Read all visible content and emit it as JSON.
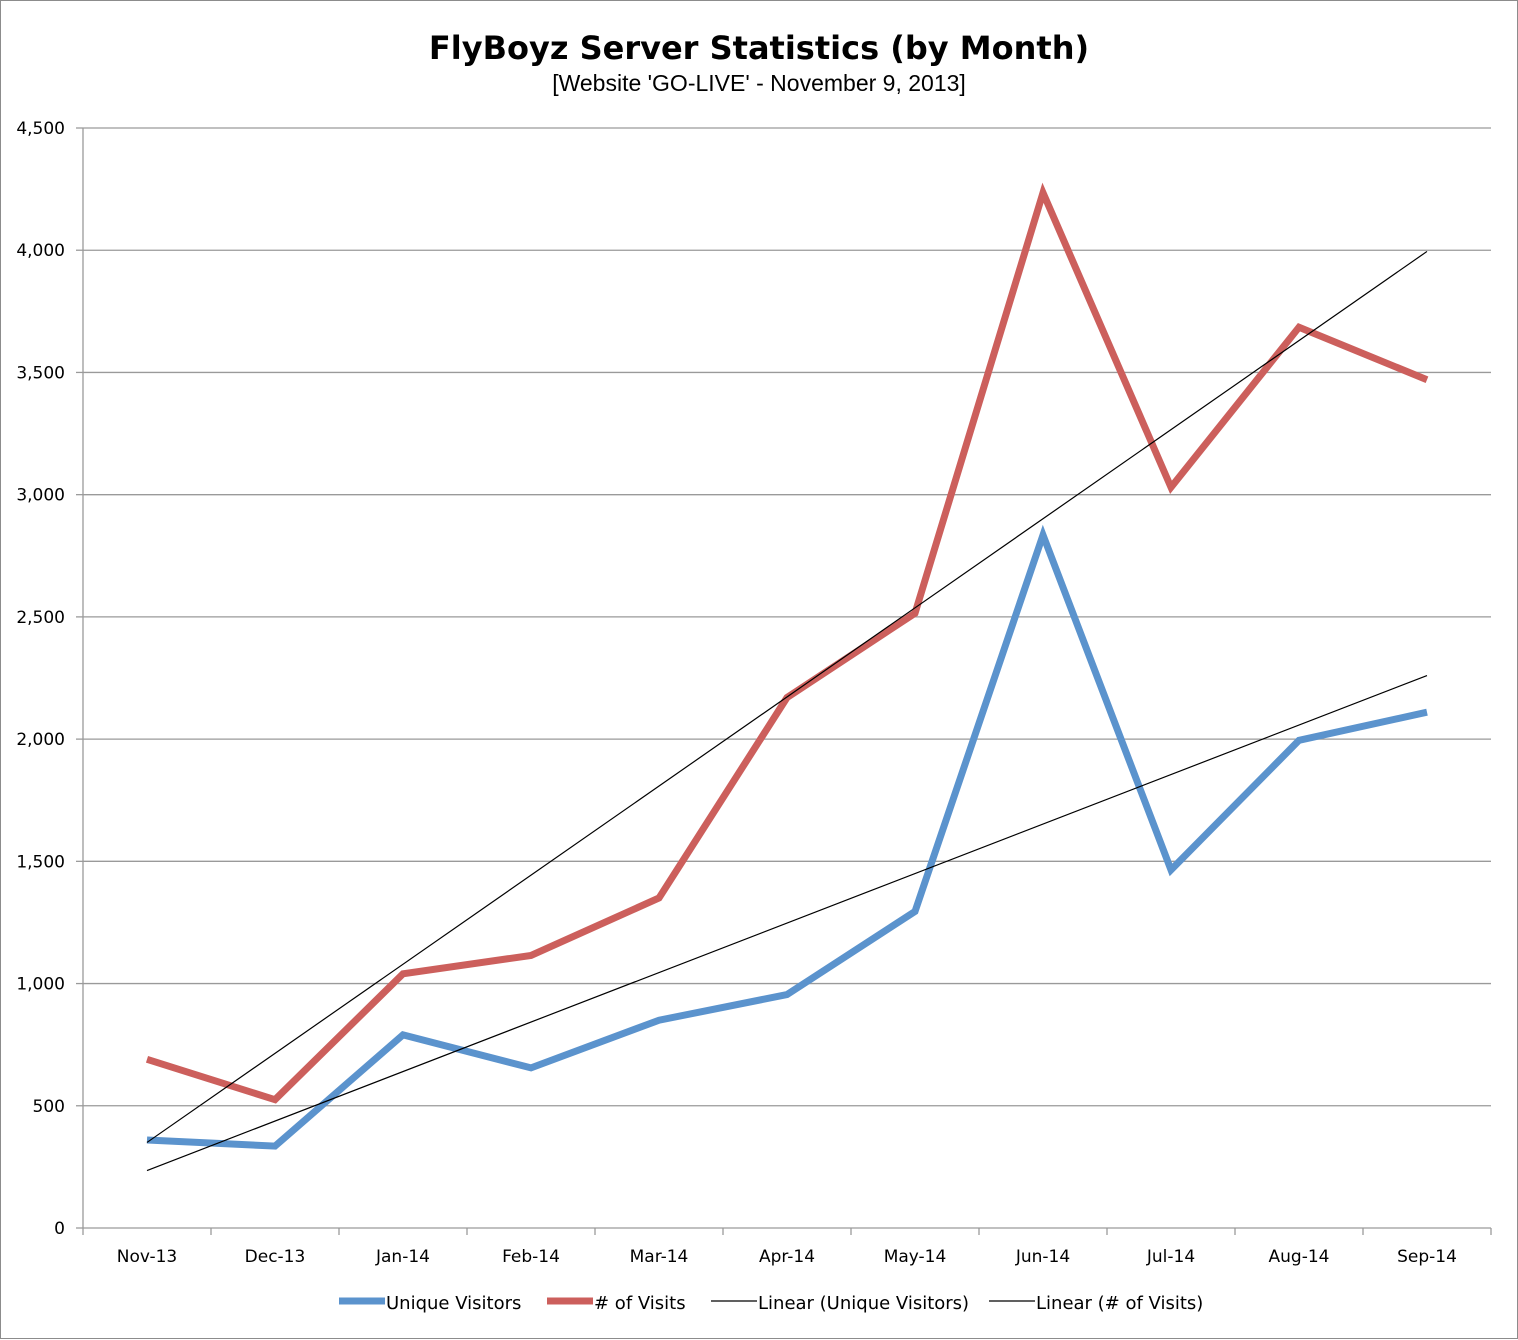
{
  "chart_data": {
    "type": "line",
    "title": "FlyBoyz Server Statistics (by Month)",
    "subtitle": "[Website 'GO-LIVE' - November 9, 2013]",
    "xlabel": "",
    "ylabel": "",
    "categories": [
      "Nov-13",
      "Dec-13",
      "Jan-14",
      "Feb-14",
      "Mar-14",
      "Apr-14",
      "May-14",
      "Jun-14",
      "Jul-14",
      "Aug-14",
      "Sep-14"
    ],
    "ylim": [
      0,
      4500
    ],
    "yticks": [
      0,
      500,
      1000,
      1500,
      2000,
      2500,
      3000,
      3500,
      4000,
      4500
    ],
    "ytick_labels": [
      "0",
      "500",
      "1,000",
      "1,500",
      "2,000",
      "2,500",
      "3,000",
      "3,500",
      "4,000",
      "4,500"
    ],
    "grid": true,
    "legend_position": "bottom",
    "series": [
      {
        "name": "Unique Visitors",
        "color": "#5b93cd",
        "values": [
          360,
          335,
          790,
          655,
          850,
          955,
          1295,
          2835,
          1465,
          1995,
          2110
        ]
      },
      {
        "name": "# of Visits",
        "color": "#cc5f5c",
        "values": [
          690,
          525,
          1040,
          1115,
          1350,
          2170,
          2515,
          4235,
          3030,
          3685,
          3470
        ]
      }
    ],
    "trendlines": [
      {
        "name": "Linear (Unique Visitors)",
        "color": "#000000",
        "of_series": "Unique Visitors",
        "values": [
          235,
          2260
        ]
      },
      {
        "name": "Linear (# of Visits)",
        "color": "#000000",
        "of_series": "# of Visits",
        "values": [
          350,
          3995
        ]
      }
    ]
  }
}
